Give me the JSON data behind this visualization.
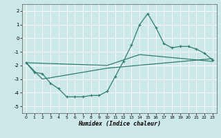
{
  "xlabel": "Humidex (Indice chaleur)",
  "background_color": "#cce8e8",
  "grid_color": "#ffffff",
  "line_color": "#2e7d6e",
  "xlim": [
    -0.5,
    23.5
  ],
  "ylim": [
    -5.5,
    2.5
  ],
  "yticks": [
    -5,
    -4,
    -3,
    -2,
    -1,
    0,
    1,
    2
  ],
  "xticks": [
    0,
    1,
    2,
    3,
    4,
    5,
    6,
    7,
    8,
    9,
    10,
    11,
    12,
    13,
    14,
    15,
    16,
    17,
    18,
    19,
    20,
    21,
    22,
    23
  ],
  "line1_x": [
    0,
    1,
    2,
    3,
    4,
    5,
    6,
    7,
    8,
    9,
    10,
    11,
    12,
    13,
    14,
    15,
    16,
    17,
    18,
    19,
    20,
    21,
    22,
    23
  ],
  "line1_y": [
    -1.8,
    -2.5,
    -2.6,
    -3.3,
    -3.7,
    -4.3,
    -4.3,
    -4.3,
    -4.2,
    -4.2,
    -3.9,
    -2.8,
    -1.7,
    -0.5,
    1.0,
    1.8,
    0.8,
    -0.4,
    -0.7,
    -0.6,
    -0.6,
    -0.8,
    -1.1,
    -1.6
  ],
  "line2_x": [
    0,
    2,
    10,
    23
  ],
  "line2_y": [
    -1.8,
    -3.0,
    -2.2,
    -1.5
  ],
  "line3_x": [
    0,
    10,
    14,
    23
  ],
  "line3_y": [
    -1.8,
    -2.0,
    -1.2,
    -1.7
  ]
}
